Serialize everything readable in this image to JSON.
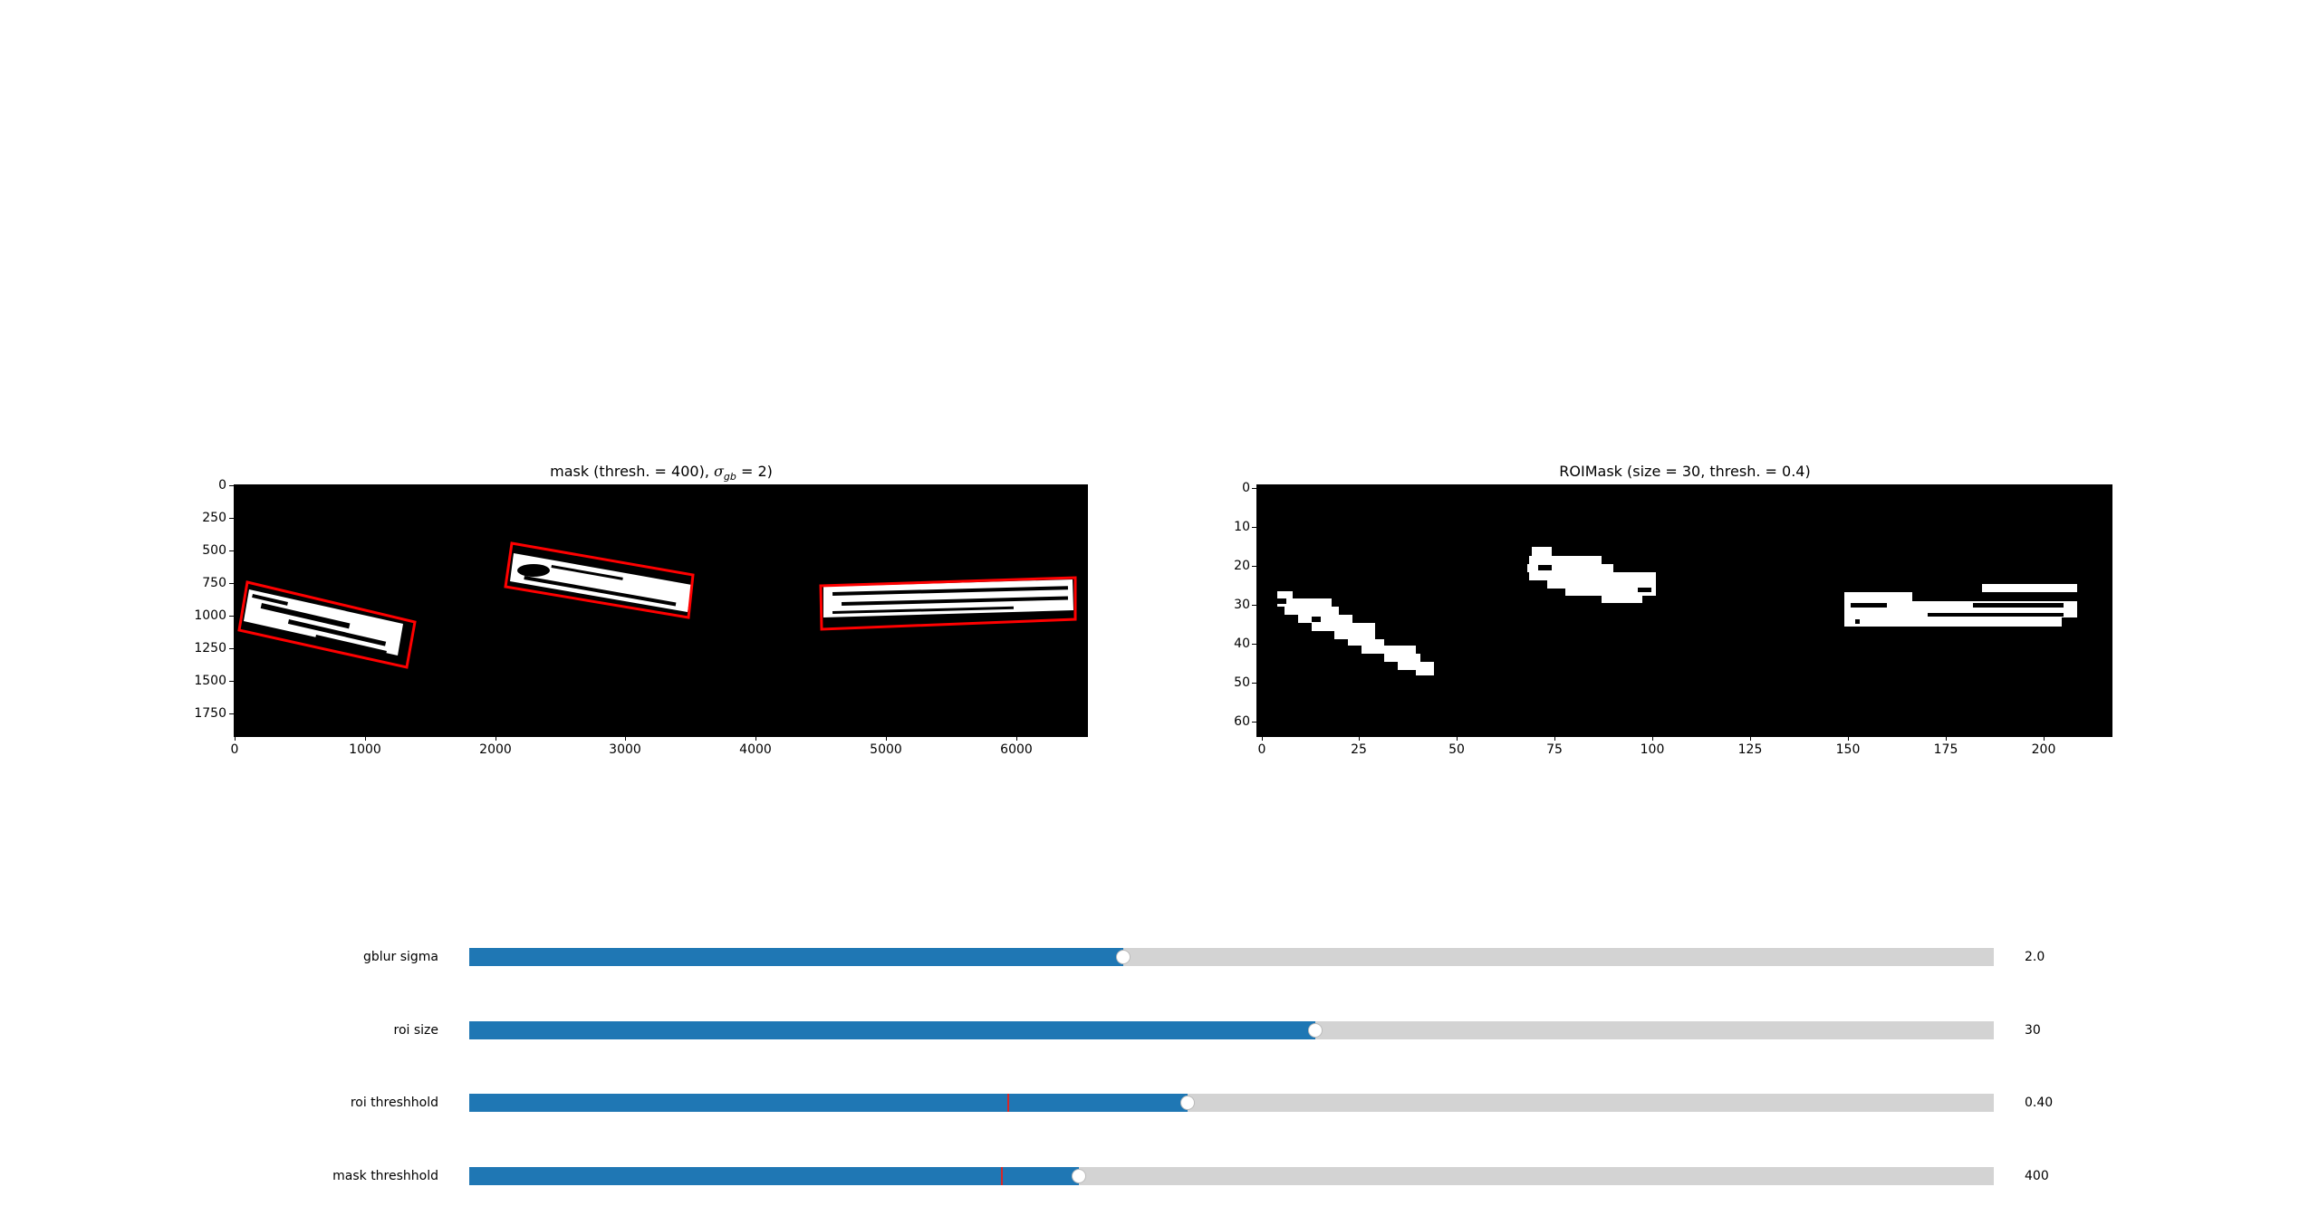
{
  "colors": {
    "slider_fill": "#1f77b4",
    "slider_track": "#d3d3d3",
    "roi_box": "#ff0000",
    "valinit_line": "#d62728"
  },
  "figure": {
    "left_plot": {
      "title_prefix": "mask (thresh. = 400), ",
      "title_sigma": "σ",
      "title_sub": "gb",
      "title_suffix": " = 2)",
      "y_ticks": [
        "0",
        "250",
        "500",
        "750",
        "1000",
        "1250",
        "1500",
        "1750"
      ],
      "x_ticks": [
        "0",
        "1000",
        "2000",
        "3000",
        "4000",
        "5000",
        "6000"
      ]
    },
    "right_plot": {
      "title": "ROIMask (size = 30, thresh. = 0.4)",
      "y_ticks": [
        "0",
        "10",
        "20",
        "30",
        "40",
        "50",
        "60"
      ],
      "x_ticks": [
        "0",
        "25",
        "50",
        "75",
        "100",
        "125",
        "150",
        "175",
        "200"
      ]
    }
  },
  "sliders": [
    {
      "label": "gblur sigma",
      "value": "2.0",
      "fraction": 0.429
    },
    {
      "label": "roi size",
      "value": "30",
      "fraction": 0.555
    },
    {
      "label": "roi threshhold",
      "value": "0.40",
      "fraction": 0.471,
      "valinit_fraction": 0.353
    },
    {
      "label": "mask threshhold",
      "value": "400",
      "fraction": 0.4,
      "valinit_fraction": 0.349
    }
  ]
}
